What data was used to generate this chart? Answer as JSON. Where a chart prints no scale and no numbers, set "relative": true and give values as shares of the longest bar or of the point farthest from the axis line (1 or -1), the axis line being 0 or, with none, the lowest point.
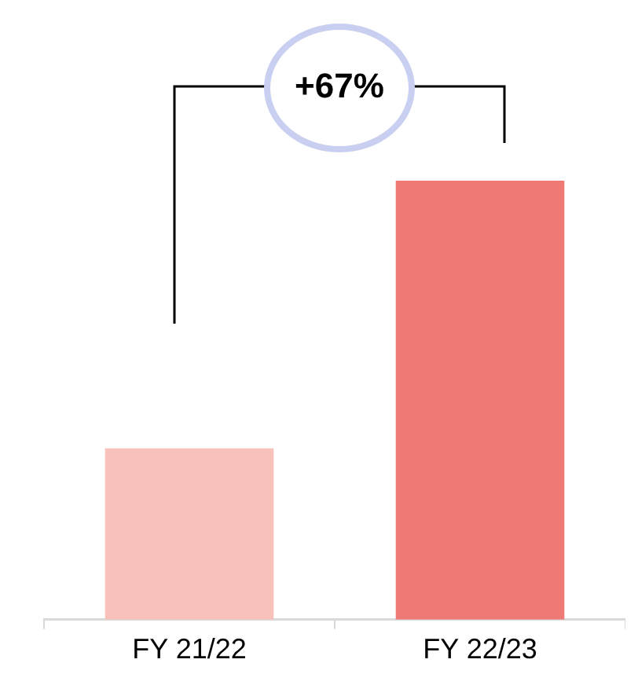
{
  "chart_data": {
    "type": "bar",
    "categories": [
      "FY 21/22",
      "FY 22/23"
    ],
    "values": [
      0.39,
      1
    ],
    "colors": [
      "#f8c1ba",
      "#ef7a75"
    ],
    "relative": true,
    "grid": false,
    "legend": false,
    "tick_labels": "x",
    "annotations": [
      "+67%"
    ]
  }
}
